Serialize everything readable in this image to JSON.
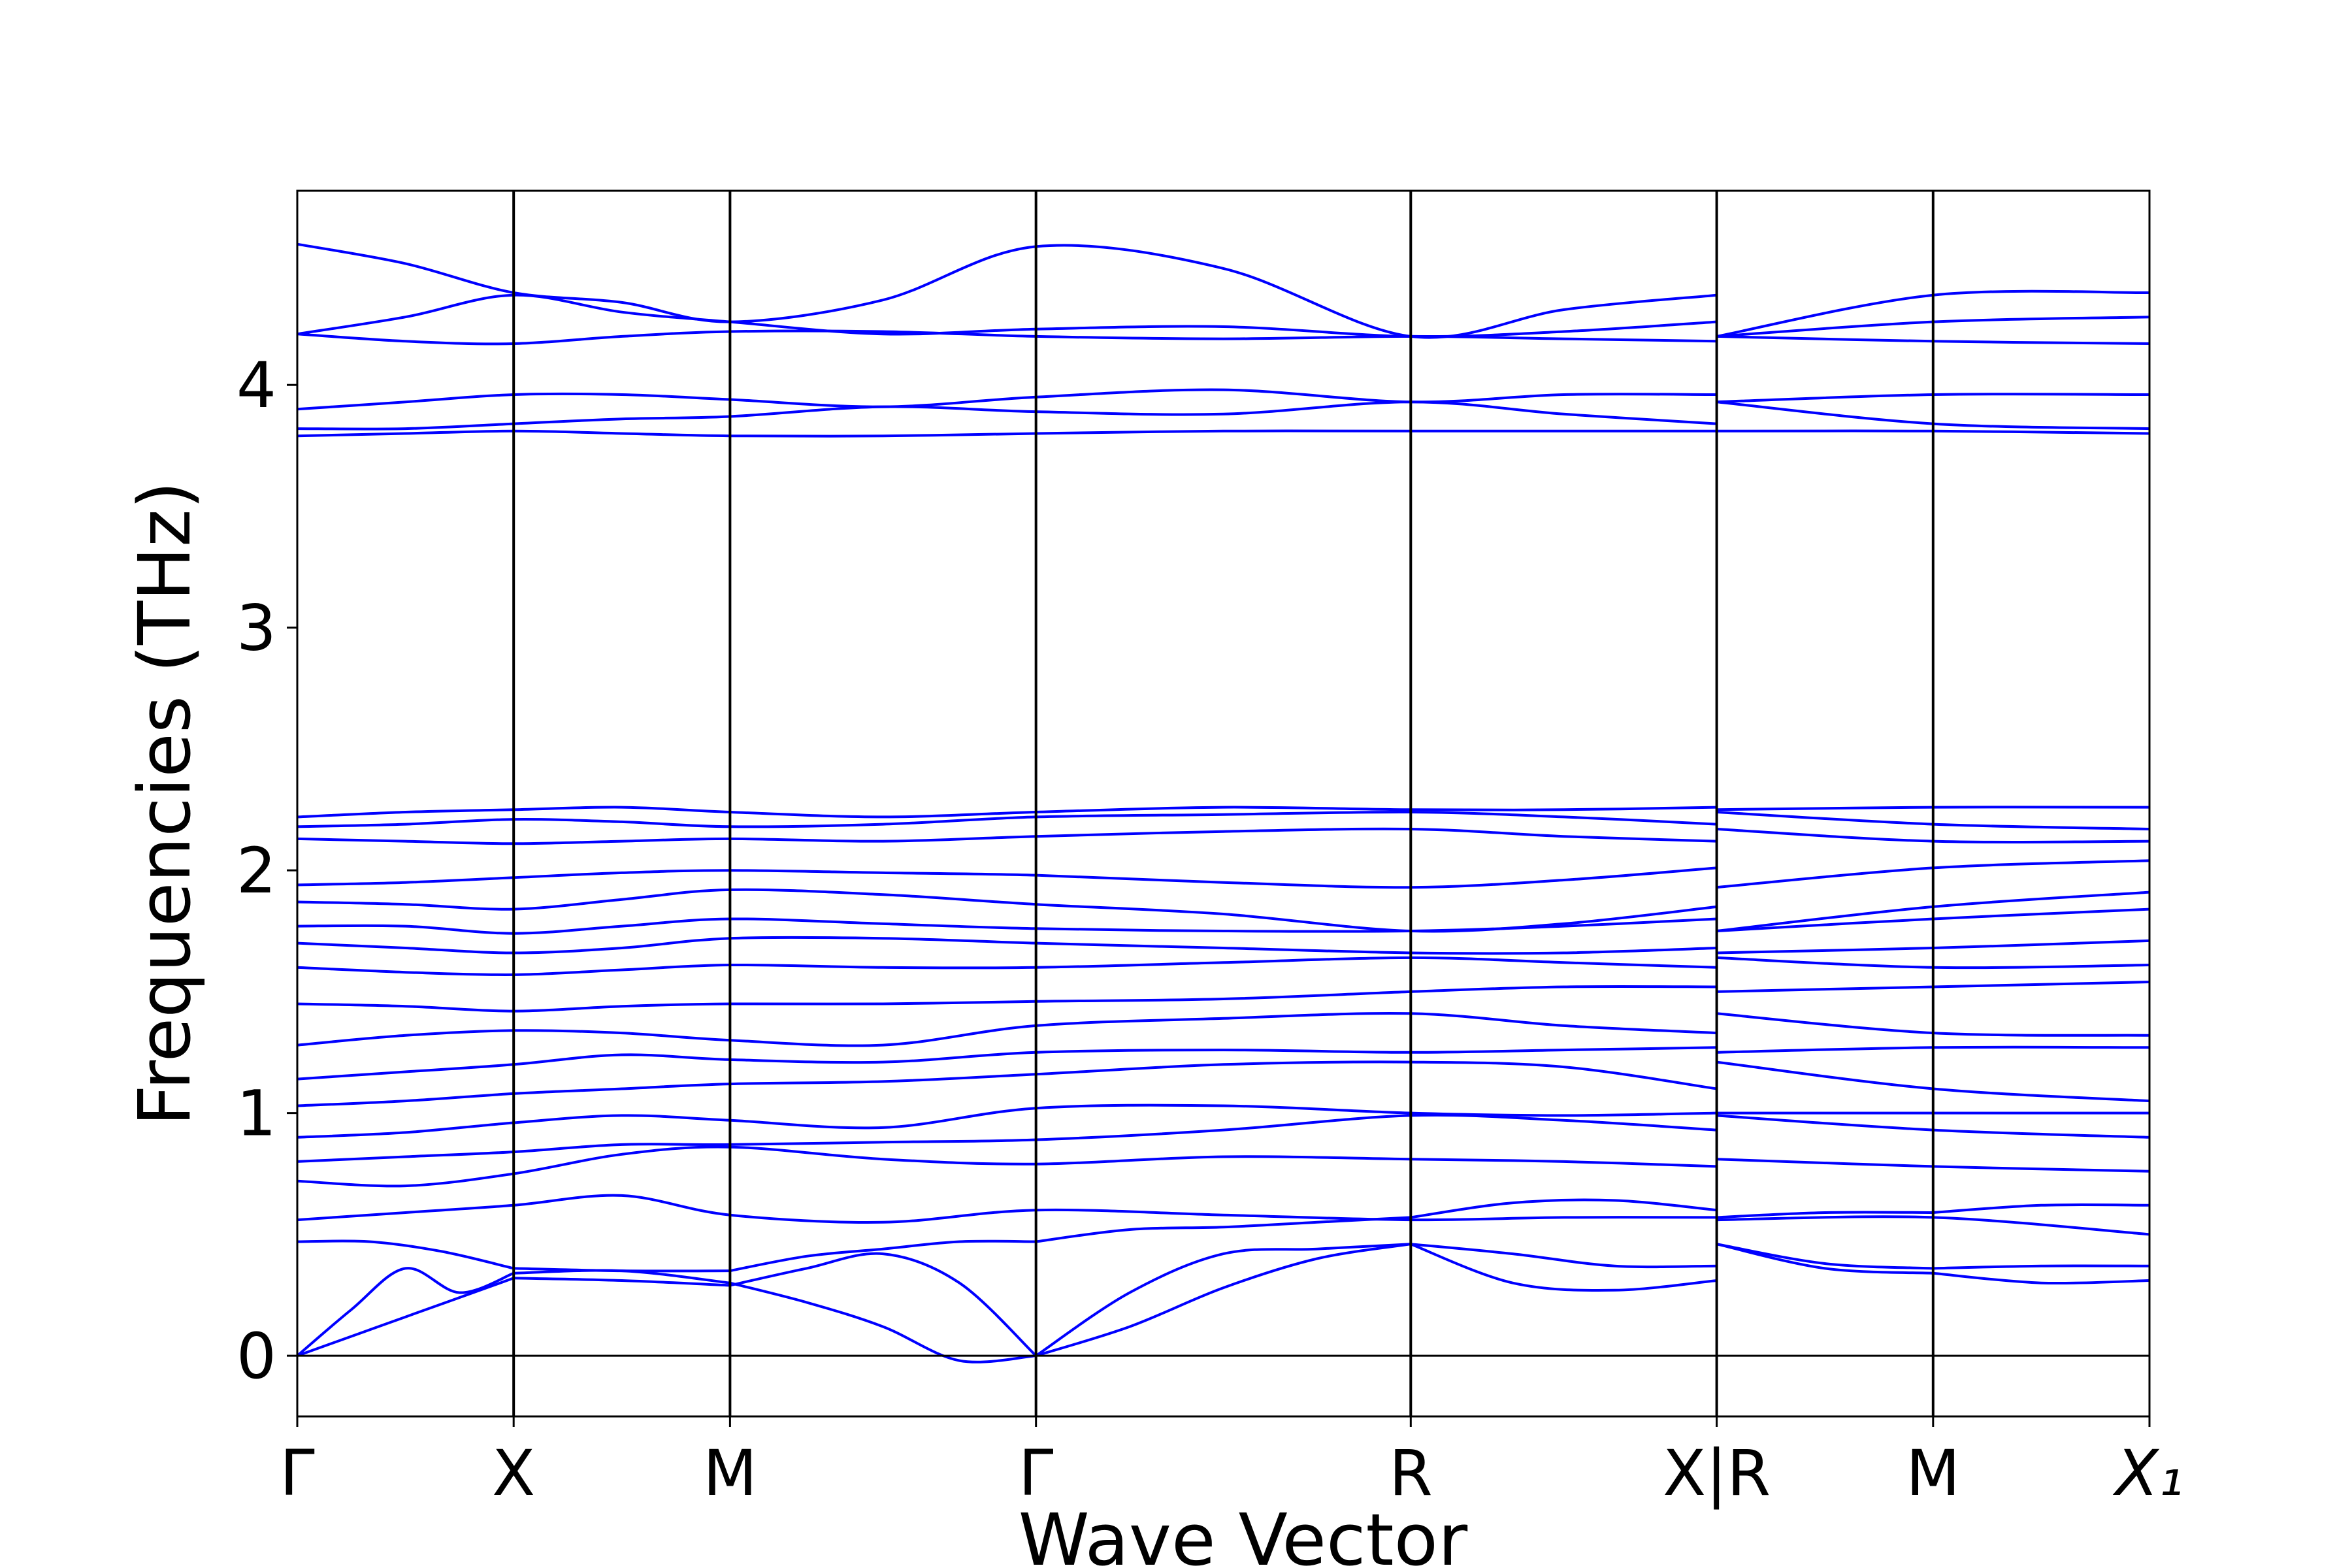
{
  "chart_data": {
    "type": "line",
    "xlabel": "Wave Vector",
    "ylabel": "Frequencies (THz)",
    "ylim": [
      -0.25,
      4.8
    ],
    "yticks": [
      0,
      1,
      2,
      3,
      4
    ],
    "grid": false,
    "zero_line": true,
    "line_color": "#0000ff",
    "segments": [
      {
        "from": "Γ",
        "to": "X",
        "length": 1.0
      },
      {
        "from": "X",
        "to": "M",
        "length": 1.0
      },
      {
        "from": "M",
        "to": "Γ",
        "length": 1.414
      },
      {
        "from": "Γ",
        "to": "R",
        "length": 1.732
      },
      {
        "from": "R",
        "to": "X",
        "length": 1.414
      },
      {
        "from": "R",
        "to": "M",
        "length": 1.0
      },
      {
        "from": "M",
        "to": "X₁",
        "length": 1.0
      }
    ],
    "path_breaks_after_segment": [
      4
    ],
    "ticks": [
      {
        "label": "Γ",
        "italic": false
      },
      {
        "label": "X",
        "italic": false
      },
      {
        "label": "M",
        "italic": false
      },
      {
        "label": "Γ",
        "italic": false
      },
      {
        "label": "R",
        "italic": false
      },
      {
        "label": "X|R",
        "italic": false
      },
      {
        "label": "M",
        "italic": false
      },
      {
        "label": "X₁",
        "italic": true
      }
    ],
    "bands": {
      "acoustic_and_low_optical": [
        [
          [
            0.0,
            0.19,
            0.36,
            0.26,
            0.34
          ],
          [
            0.34,
            0.35,
            0.3
          ],
          [
            0.3,
            0.22,
            0.12,
            -0.02,
            0.0
          ],
          [
            0.0,
            0.12,
            0.28,
            0.4,
            0.46
          ],
          [
            0.46,
            0.3,
            0.27,
            0.31
          ],
          [
            0.46,
            0.36,
            0.34
          ],
          [
            0.34,
            0.3,
            0.31
          ]
        ],
        [
          [
            0.0,
            0.16,
            0.32
          ],
          [
            0.32,
            0.31,
            0.29
          ],
          [
            0.29,
            0.36,
            0.42,
            0.3,
            0.0
          ],
          [
            0.0,
            0.26,
            0.42,
            0.44,
            0.46
          ],
          [
            0.46,
            0.42,
            0.37,
            0.37
          ],
          [
            0.46,
            0.38,
            0.36
          ],
          [
            0.36,
            0.37,
            0.37
          ]
        ],
        [
          [
            0.47,
            0.47,
            0.43,
            0.36
          ],
          [
            0.36,
            0.35,
            0.35
          ],
          [
            0.35,
            0.41,
            0.44,
            0.47,
            0.47
          ],
          [
            0.47,
            0.52,
            0.53,
            0.55,
            0.57
          ],
          [
            0.57,
            0.63,
            0.64,
            0.6
          ],
          [
            0.57,
            0.59,
            0.59
          ],
          [
            0.59,
            0.62,
            0.62
          ]
        ]
      ],
      "optical_flat": [
        [
          0.56,
          0.59,
          0.62,
          0.66,
          0.58,
          0.55,
          0.6,
          0.58,
          0.56,
          0.57,
          0.57,
          0.5
        ],
        [
          0.72,
          0.7,
          0.75,
          0.83,
          0.86,
          0.81,
          0.79,
          0.82,
          0.81,
          0.8,
          0.78,
          0.76
        ],
        [
          0.8,
          0.82,
          0.84,
          0.87,
          0.87,
          0.88,
          0.89,
          0.93,
          0.99,
          0.97,
          0.93,
          0.9
        ],
        [
          0.9,
          0.92,
          0.96,
          0.99,
          0.97,
          0.94,
          1.02,
          1.03,
          1.0,
          0.99,
          1.0,
          1.0
        ],
        [
          1.03,
          1.05,
          1.08,
          1.1,
          1.12,
          1.13,
          1.16,
          1.2,
          1.21,
          1.19,
          1.1,
          1.05
        ],
        [
          1.14,
          1.17,
          1.2,
          1.24,
          1.22,
          1.21,
          1.25,
          1.26,
          1.25,
          1.26,
          1.27,
          1.27
        ],
        [
          1.28,
          1.32,
          1.34,
          1.33,
          1.3,
          1.28,
          1.36,
          1.39,
          1.41,
          1.36,
          1.33,
          1.32
        ],
        [
          1.45,
          1.44,
          1.42,
          1.44,
          1.45,
          1.45,
          1.46,
          1.47,
          1.5,
          1.52,
          1.52,
          1.54
        ],
        [
          1.6,
          1.58,
          1.57,
          1.59,
          1.61,
          1.6,
          1.6,
          1.62,
          1.64,
          1.62,
          1.6,
          1.61
        ],
        [
          1.7,
          1.68,
          1.66,
          1.68,
          1.72,
          1.72,
          1.7,
          1.68,
          1.66,
          1.66,
          1.68,
          1.71
        ],
        [
          1.77,
          1.77,
          1.74,
          1.77,
          1.8,
          1.78,
          1.76,
          1.75,
          1.75,
          1.77,
          1.8,
          1.84
        ],
        [
          1.87,
          1.86,
          1.84,
          1.88,
          1.92,
          1.9,
          1.86,
          1.82,
          1.75,
          1.78,
          1.85,
          1.91
        ],
        [
          1.94,
          1.95,
          1.97,
          1.99,
          2.0,
          1.99,
          1.98,
          1.95,
          1.93,
          1.96,
          2.01,
          2.04
        ],
        [
          2.13,
          2.12,
          2.11,
          2.12,
          2.13,
          2.12,
          2.14,
          2.16,
          2.17,
          2.14,
          2.12,
          2.12
        ],
        [
          2.18,
          2.19,
          2.21,
          2.2,
          2.18,
          2.19,
          2.22,
          2.23,
          2.24,
          2.22,
          2.19,
          2.17
        ],
        [
          2.22,
          2.24,
          2.25,
          2.26,
          2.24,
          2.22,
          2.24,
          2.26,
          2.25,
          2.25,
          2.26,
          2.26
        ],
        [
          3.79,
          3.8,
          3.81,
          3.8,
          3.79,
          3.79,
          3.8,
          3.81,
          3.81,
          3.81,
          3.81,
          3.8
        ],
        [
          3.82,
          3.82,
          3.84,
          3.86,
          3.87,
          3.91,
          3.89,
          3.88,
          3.93,
          3.88,
          3.84,
          3.82
        ],
        [
          3.9,
          3.93,
          3.96,
          3.96,
          3.94,
          3.91,
          3.95,
          3.98,
          3.93,
          3.96,
          3.96,
          3.96
        ],
        [
          4.21,
          4.18,
          4.17,
          4.2,
          4.22,
          4.22,
          4.2,
          4.19,
          4.2,
          4.19,
          4.18,
          4.17
        ],
        [
          4.21,
          4.28,
          4.37,
          4.3,
          4.26,
          4.21,
          4.23,
          4.24,
          4.2,
          4.22,
          4.26,
          4.28
        ],
        [
          4.58,
          4.5,
          4.38,
          4.34,
          4.26,
          4.35,
          4.57,
          4.48,
          4.2,
          4.31,
          4.37,
          4.38
        ]
      ]
    }
  }
}
